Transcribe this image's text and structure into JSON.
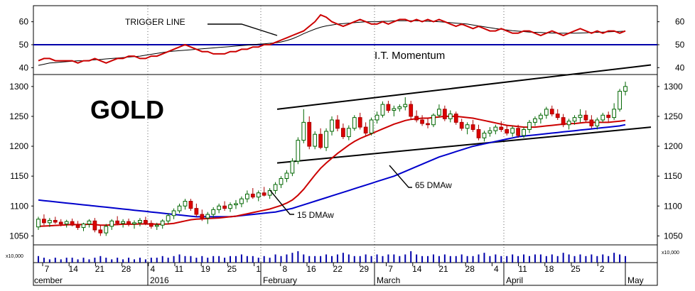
{
  "chart_data": {
    "type": "candlestick",
    "title": "GOLD",
    "indicator": {
      "label": "I.T. Momentum",
      "trigger_label": "TRIGGER LINE",
      "reference_level": 50,
      "ylim": [
        37,
        67
      ],
      "yticks": [
        40,
        50,
        60
      ],
      "colors": {
        "momentum": "#cc0000",
        "trigger": "#000000",
        "reference": "#0000aa"
      },
      "momentum": [
        43,
        44,
        44,
        43,
        43,
        43,
        43,
        42,
        43,
        43,
        44,
        43,
        42,
        43,
        44,
        44,
        45,
        45,
        44,
        44,
        45,
        45,
        46,
        47,
        48,
        49,
        50,
        49,
        48,
        47,
        47,
        46,
        46,
        46,
        47,
        47,
        48,
        48,
        49,
        49,
        50,
        50,
        51,
        52,
        53,
        54,
        55,
        56,
        58,
        60,
        63,
        62,
        60,
        59,
        58,
        59,
        60,
        61,
        60,
        59,
        59,
        60,
        59,
        60,
        61,
        61,
        60,
        61,
        60,
        61,
        60,
        61,
        60,
        59,
        58,
        59,
        58,
        57,
        58,
        57,
        56,
        56,
        57,
        56,
        55,
        55,
        56,
        56,
        55,
        54,
        55,
        56,
        55,
        54,
        55,
        56,
        57,
        56,
        55,
        56,
        55,
        56,
        56,
        55,
        56,
        58,
        60
      ],
      "trigger": [
        41,
        41.5,
        42,
        42.2,
        42.4,
        42.6,
        42.8,
        43,
        43,
        43.2,
        43.4,
        43.6,
        43.8,
        44,
        44.2,
        44.4,
        44.6,
        44.8,
        45,
        45.4,
        45.8,
        46.2,
        46.6,
        47,
        47.2,
        47.4,
        47.6,
        47.8,
        48,
        48.2,
        48.4,
        48.6,
        48.8,
        49,
        49.2,
        49.4,
        49.6,
        49.8,
        50,
        50.2,
        50.4,
        50.6,
        50.8,
        51.2,
        51.8,
        52.6,
        53.6,
        54.8,
        55.8,
        56.8,
        57.6,
        58.2,
        58.6,
        59,
        59.2,
        59.4,
        59.6,
        59.8,
        60,
        60,
        60,
        60.2,
        60.2,
        60.4,
        60.4,
        60.4,
        60.4,
        60.4,
        60.3,
        60.2,
        60.1,
        60,
        59.8,
        59.6,
        59.4,
        59.2,
        59,
        58.6,
        58.2,
        57.8,
        57.4,
        57,
        56.7,
        56.4,
        56.1,
        55.9,
        55.7,
        55.5,
        55.4,
        55.3,
        55.2,
        55.1,
        55,
        55,
        55,
        55,
        55.1,
        55.2,
        55.3,
        55.4,
        55.5,
        55.6,
        55.7,
        55.8,
        55.9,
        56.1,
        56.4
      ]
    },
    "price": {
      "ylim": [
        1035,
        1320
      ],
      "yticks": [
        1050,
        1100,
        1150,
        1200,
        1250,
        1300
      ],
      "up_color": "#ffffff",
      "down_color": "#dd0000",
      "candles": [
        [
          1065,
          1082,
          1060,
          1078
        ],
        [
          1078,
          1086,
          1068,
          1072
        ],
        [
          1072,
          1080,
          1065,
          1076
        ],
        [
          1076,
          1082,
          1070,
          1073
        ],
        [
          1073,
          1078,
          1066,
          1070
        ],
        [
          1070,
          1077,
          1064,
          1074
        ],
        [
          1074,
          1079,
          1066,
          1068
        ],
        [
          1068,
          1075,
          1060,
          1064
        ],
        [
          1064,
          1072,
          1058,
          1070
        ],
        [
          1070,
          1078,
          1064,
          1075
        ],
        [
          1075,
          1080,
          1056,
          1060
        ],
        [
          1060,
          1068,
          1050,
          1055
        ],
        [
          1055,
          1070,
          1050,
          1066
        ],
        [
          1066,
          1078,
          1060,
          1075
        ],
        [
          1075,
          1083,
          1068,
          1071
        ],
        [
          1071,
          1078,
          1064,
          1074
        ],
        [
          1074,
          1079,
          1066,
          1070
        ],
        [
          1070,
          1076,
          1062,
          1072
        ],
        [
          1072,
          1080,
          1066,
          1076
        ],
        [
          1076,
          1082,
          1068,
          1071
        ],
        [
          1071,
          1076,
          1062,
          1066
        ],
        [
          1066,
          1072,
          1060,
          1068
        ],
        [
          1068,
          1078,
          1062,
          1075
        ],
        [
          1075,
          1088,
          1070,
          1084
        ],
        [
          1084,
          1096,
          1078,
          1092
        ],
        [
          1092,
          1104,
          1088,
          1100
        ],
        [
          1100,
          1112,
          1094,
          1108
        ],
        [
          1108,
          1112,
          1092,
          1096
        ],
        [
          1096,
          1104,
          1082,
          1086
        ],
        [
          1086,
          1094,
          1075,
          1080
        ],
        [
          1080,
          1090,
          1070,
          1086
        ],
        [
          1086,
          1098,
          1080,
          1094
        ],
        [
          1094,
          1104,
          1088,
          1100
        ],
        [
          1100,
          1108,
          1092,
          1096
        ],
        [
          1096,
          1106,
          1090,
          1102
        ],
        [
          1102,
          1110,
          1095,
          1104
        ],
        [
          1104,
          1116,
          1098,
          1112
        ],
        [
          1112,
          1126,
          1106,
          1120
        ],
        [
          1120,
          1130,
          1112,
          1115
        ],
        [
          1115,
          1126,
          1108,
          1122
        ],
        [
          1122,
          1132,
          1116,
          1118
        ],
        [
          1118,
          1130,
          1112,
          1126
        ],
        [
          1126,
          1140,
          1120,
          1136
        ],
        [
          1136,
          1150,
          1130,
          1146
        ],
        [
          1146,
          1160,
          1140,
          1155
        ],
        [
          1155,
          1180,
          1150,
          1175
        ],
        [
          1175,
          1215,
          1170,
          1210
        ],
        [
          1210,
          1262,
          1205,
          1240
        ],
        [
          1240,
          1250,
          1195,
          1200
        ],
        [
          1200,
          1225,
          1195,
          1220
        ],
        [
          1220,
          1230,
          1195,
          1198
        ],
        [
          1198,
          1230,
          1192,
          1225
        ],
        [
          1225,
          1250,
          1218,
          1244
        ],
        [
          1244,
          1252,
          1225,
          1230
        ],
        [
          1230,
          1238,
          1212,
          1216
        ],
        [
          1216,
          1235,
          1210,
          1230
        ],
        [
          1230,
          1252,
          1226,
          1248
        ],
        [
          1248,
          1256,
          1228,
          1232
        ],
        [
          1232,
          1240,
          1218,
          1222
        ],
        [
          1222,
          1248,
          1218,
          1244
        ],
        [
          1244,
          1258,
          1238,
          1252
        ],
        [
          1252,
          1275,
          1248,
          1270
        ],
        [
          1270,
          1276,
          1256,
          1260
        ],
        [
          1260,
          1268,
          1250,
          1263
        ],
        [
          1263,
          1270,
          1258,
          1266
        ],
        [
          1266,
          1282,
          1260,
          1270
        ],
        [
          1270,
          1276,
          1245,
          1250
        ],
        [
          1250,
          1260,
          1240,
          1244
        ],
        [
          1244,
          1252,
          1234,
          1238
        ],
        [
          1238,
          1248,
          1230,
          1236
        ],
        [
          1236,
          1255,
          1232,
          1252
        ],
        [
          1252,
          1270,
          1248,
          1262
        ],
        [
          1262,
          1268,
          1242,
          1246
        ],
        [
          1246,
          1260,
          1240,
          1254
        ],
        [
          1254,
          1258,
          1236,
          1240
        ],
        [
          1240,
          1246,
          1226,
          1230
        ],
        [
          1230,
          1240,
          1220,
          1236
        ],
        [
          1236,
          1244,
          1224,
          1228
        ],
        [
          1228,
          1236,
          1210,
          1214
        ],
        [
          1214,
          1226,
          1208,
          1222
        ],
        [
          1222,
          1232,
          1216,
          1226
        ],
        [
          1226,
          1236,
          1220,
          1232
        ],
        [
          1232,
          1242,
          1224,
          1228
        ],
        [
          1228,
          1236,
          1218,
          1222
        ],
        [
          1222,
          1234,
          1216,
          1230
        ],
        [
          1230,
          1236,
          1214,
          1218
        ],
        [
          1218,
          1232,
          1214,
          1228
        ],
        [
          1228,
          1244,
          1222,
          1240
        ],
        [
          1240,
          1250,
          1234,
          1246
        ],
        [
          1246,
          1256,
          1238,
          1252
        ],
        [
          1252,
          1266,
          1246,
          1262
        ],
        [
          1262,
          1268,
          1250,
          1254
        ],
        [
          1254,
          1262,
          1244,
          1248
        ],
        [
          1248,
          1254,
          1232,
          1236
        ],
        [
          1236,
          1246,
          1228,
          1242
        ],
        [
          1242,
          1252,
          1236,
          1248
        ],
        [
          1248,
          1262,
          1240,
          1252
        ],
        [
          1252,
          1260,
          1240,
          1244
        ],
        [
          1244,
          1252,
          1230,
          1234
        ],
        [
          1234,
          1248,
          1228,
          1244
        ],
        [
          1244,
          1256,
          1240,
          1252
        ],
        [
          1252,
          1258,
          1240,
          1248
        ],
        [
          1248,
          1272,
          1244,
          1262
        ],
        [
          1262,
          1296,
          1258,
          1292
        ],
        [
          1292,
          1308,
          1285,
          1300
        ]
      ],
      "ma_short": {
        "label": "15 DMAw",
        "color": "#cc0000",
        "values": [
          1066,
          1066.5,
          1067,
          1067.5,
          1068,
          1068.5,
          1069,
          1069,
          1069,
          1069.5,
          1069,
          1068,
          1068,
          1068.5,
          1069,
          1069.5,
          1069.5,
          1069.5,
          1070,
          1070,
          1070,
          1069.5,
          1069.5,
          1070,
          1071,
          1073,
          1075,
          1077,
          1078,
          1078.5,
          1079,
          1079.5,
          1080,
          1081,
          1082,
          1083,
          1085,
          1087,
          1089,
          1091,
          1093,
          1095,
          1098,
          1101,
          1105,
          1110,
          1118,
          1128,
          1140,
          1152,
          1163,
          1172,
          1180,
          1188,
          1195,
          1202,
          1208,
          1213,
          1217,
          1221,
          1225,
          1229,
          1233,
          1237,
          1240,
          1243,
          1245,
          1246,
          1247,
          1247,
          1248,
          1249,
          1250,
          1250,
          1250,
          1249,
          1248,
          1247,
          1245,
          1243,
          1241,
          1239,
          1237,
          1235,
          1234,
          1233,
          1232,
          1232,
          1232,
          1233,
          1234,
          1235,
          1236,
          1237,
          1238,
          1238,
          1239,
          1240,
          1240,
          1240,
          1240,
          1240,
          1241,
          1242,
          1243,
          1246,
          1252
        ]
      },
      "ma_long": {
        "label": "65 DMAw",
        "color": "#0000cc",
        "values": [
          1110,
          1109,
          1108,
          1107,
          1106,
          1105,
          1104,
          1103,
          1102,
          1101,
          1100,
          1099,
          1098,
          1097,
          1096,
          1095,
          1094,
          1093,
          1092,
          1091,
          1090,
          1089,
          1088,
          1087,
          1086,
          1085,
          1084,
          1083,
          1082,
          1082,
          1082,
          1082,
          1082,
          1082,
          1082,
          1083,
          1084,
          1085,
          1086,
          1087,
          1088,
          1089,
          1090,
          1092,
          1094,
          1096,
          1099,
          1102,
          1105,
          1108,
          1111,
          1114,
          1117,
          1120,
          1123,
          1126,
          1129,
          1132,
          1135,
          1138,
          1141,
          1144,
          1147,
          1150,
          1154,
          1158,
          1162,
          1166,
          1170,
          1174,
          1178,
          1182,
          1185,
          1188,
          1191,
          1194,
          1197,
          1200,
          1202,
          1204,
          1206,
          1208,
          1210,
          1212,
          1214,
          1216,
          1217,
          1218,
          1219,
          1220,
          1221,
          1222,
          1223,
          1224,
          1225,
          1226,
          1227,
          1228,
          1229,
          1230,
          1231,
          1232,
          1233,
          1234,
          1236,
          1238,
          1240
        ]
      },
      "channel": {
        "upper": [
          1262,
          1336
        ],
        "lower": [
          1172,
          1232
        ]
      }
    },
    "volume_label": "x10,000",
    "volume": [
      4,
      3,
      2,
      3,
      2,
      3,
      3,
      2,
      3,
      2,
      3,
      4,
      3,
      2,
      3,
      2,
      3,
      2,
      3,
      2,
      3,
      3,
      4,
      3,
      4,
      5,
      4,
      4,
      3,
      4,
      3,
      4,
      4,
      3,
      4,
      4,
      5,
      4,
      4,
      3,
      4,
      3,
      5,
      4,
      5,
      6,
      7,
      5,
      4,
      4,
      4,
      5,
      4,
      5,
      6,
      5,
      4,
      4,
      5,
      4,
      5,
      4,
      5,
      5,
      4,
      5,
      7,
      5,
      4,
      4,
      5,
      4,
      5,
      4,
      4,
      5,
      4,
      4,
      5,
      6,
      4,
      5,
      4,
      4,
      5,
      4,
      5,
      4,
      5,
      5,
      4,
      5,
      4,
      6,
      5,
      4,
      5,
      4,
      5,
      4,
      5,
      4,
      6,
      5,
      4,
      5,
      6
    ],
    "x_axis": {
      "day_ticks": [
        "7",
        "14",
        "21",
        "28",
        "4",
        "11",
        "19",
        "25",
        "1",
        "8",
        "16",
        "22",
        "29",
        "7",
        "14",
        "21",
        "28",
        "4",
        "11",
        "18",
        "25",
        "2"
      ],
      "month_labels": [
        "cember",
        "2016",
        "February",
        "March",
        "April",
        "May"
      ]
    },
    "annotations": [
      "TRIGGER LINE",
      "I.T. Momentum",
      "65 DMAw",
      "15 DMAw",
      "GOLD"
    ]
  }
}
